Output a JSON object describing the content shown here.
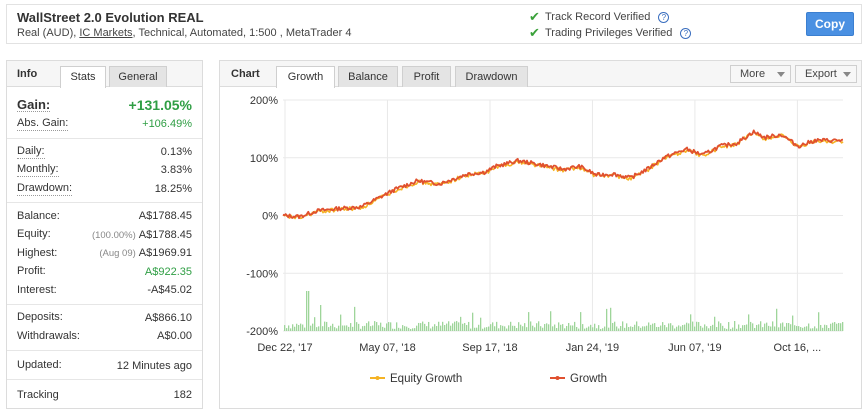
{
  "header": {
    "title": "WallStreet 2.0 Evolution REAL",
    "subtitle_prefix": "Real (AUD), ",
    "broker": "IC Markets",
    "subtitle_suffix": ", Technical, Automated, 1:500 , MetaTrader 4",
    "verified": [
      "Track Record Verified",
      "Trading Privileges Verified"
    ],
    "copy_label": "Copy"
  },
  "info_panel": {
    "title": "Info",
    "tabs": [
      "Stats",
      "General"
    ],
    "active_tab": "Stats",
    "gain": {
      "label": "Gain:",
      "value": "+131.05%"
    },
    "abs_gain": {
      "label": "Abs. Gain:",
      "value": "+106.49%"
    },
    "daily": {
      "label": "Daily:",
      "value": "0.13%"
    },
    "monthly": {
      "label": "Monthly:",
      "value": "3.83%"
    },
    "drawdown": {
      "label": "Drawdown:",
      "value": "18.25%"
    },
    "balance": {
      "label": "Balance:",
      "value": "A$1788.45"
    },
    "equity": {
      "label": "Equity:",
      "note": "(100.00%)",
      "value": "A$1788.45"
    },
    "highest": {
      "label": "Highest:",
      "note": "(Aug 09)",
      "value": "A$1969.91"
    },
    "profit": {
      "label": "Profit:",
      "value": "A$922.35"
    },
    "interest": {
      "label": "Interest:",
      "value": "-A$45.02"
    },
    "deposits": {
      "label": "Deposits:",
      "value": "A$866.10"
    },
    "withdrawals": {
      "label": "Withdrawals:",
      "value": "A$0.00"
    },
    "updated": {
      "label": "Updated:",
      "value": "12 Minutes ago"
    },
    "tracking": {
      "label": "Tracking",
      "value": "182"
    }
  },
  "chart_panel": {
    "title": "Chart",
    "tabs": [
      "Growth",
      "Balance",
      "Profit",
      "Drawdown"
    ],
    "active_tab": "Growth",
    "more_label": "More",
    "export_label": "Export"
  },
  "chart_data": {
    "type": "line",
    "y_tick_labels": [
      "200%",
      "100%",
      "0%",
      "-100%",
      "-200%"
    ],
    "y_ticks": [
      200,
      100,
      0,
      -100,
      -200
    ],
    "ylim": [
      -200,
      200
    ],
    "x_tick_labels": [
      "Dec 22, '17",
      "May 07, '18",
      "Sep 17, '18",
      "Jan 24, '19",
      "Jun 07, '19",
      "Oct 16, ..."
    ],
    "x_ticks": [
      0,
      0.183,
      0.366,
      0.549,
      0.732,
      0.915
    ],
    "grid": true,
    "legend_position": "bottom",
    "colors": {
      "equity": "#f5b324",
      "growth": "#e0502f",
      "volume": "#9ed59a",
      "grid": "#e9e9e9"
    },
    "series": [
      {
        "name": "Equity Growth",
        "x": [
          0,
          0.03,
          0.06,
          0.1,
          0.14,
          0.2,
          0.24,
          0.28,
          0.33,
          0.36,
          0.38,
          0.42,
          0.46,
          0.5,
          0.53,
          0.56,
          0.59,
          0.62,
          0.65,
          0.68,
          0.72,
          0.75,
          0.78,
          0.81,
          0.84,
          0.86,
          0.89,
          0.92,
          0.95,
          1.0
        ],
        "y": [
          0,
          -2,
          8,
          12,
          15,
          45,
          60,
          55,
          72,
          75,
          85,
          95,
          88,
          80,
          85,
          70,
          72,
          65,
          80,
          100,
          115,
          105,
          120,
          125,
          145,
          135,
          140,
          120,
          130,
          130
        ]
      },
      {
        "name": "Growth",
        "x": [
          0,
          0.03,
          0.06,
          0.1,
          0.14,
          0.2,
          0.24,
          0.28,
          0.33,
          0.36,
          0.38,
          0.42,
          0.46,
          0.5,
          0.53,
          0.56,
          0.59,
          0.62,
          0.65,
          0.68,
          0.72,
          0.75,
          0.78,
          0.81,
          0.84,
          0.86,
          0.89,
          0.92,
          0.95,
          1.0
        ],
        "y": [
          0,
          -2,
          8,
          12,
          15,
          45,
          60,
          55,
          72,
          75,
          85,
          95,
          88,
          80,
          85,
          70,
          72,
          65,
          80,
          100,
          115,
          105,
          120,
          125,
          145,
          135,
          140,
          120,
          130,
          130
        ]
      }
    ]
  }
}
